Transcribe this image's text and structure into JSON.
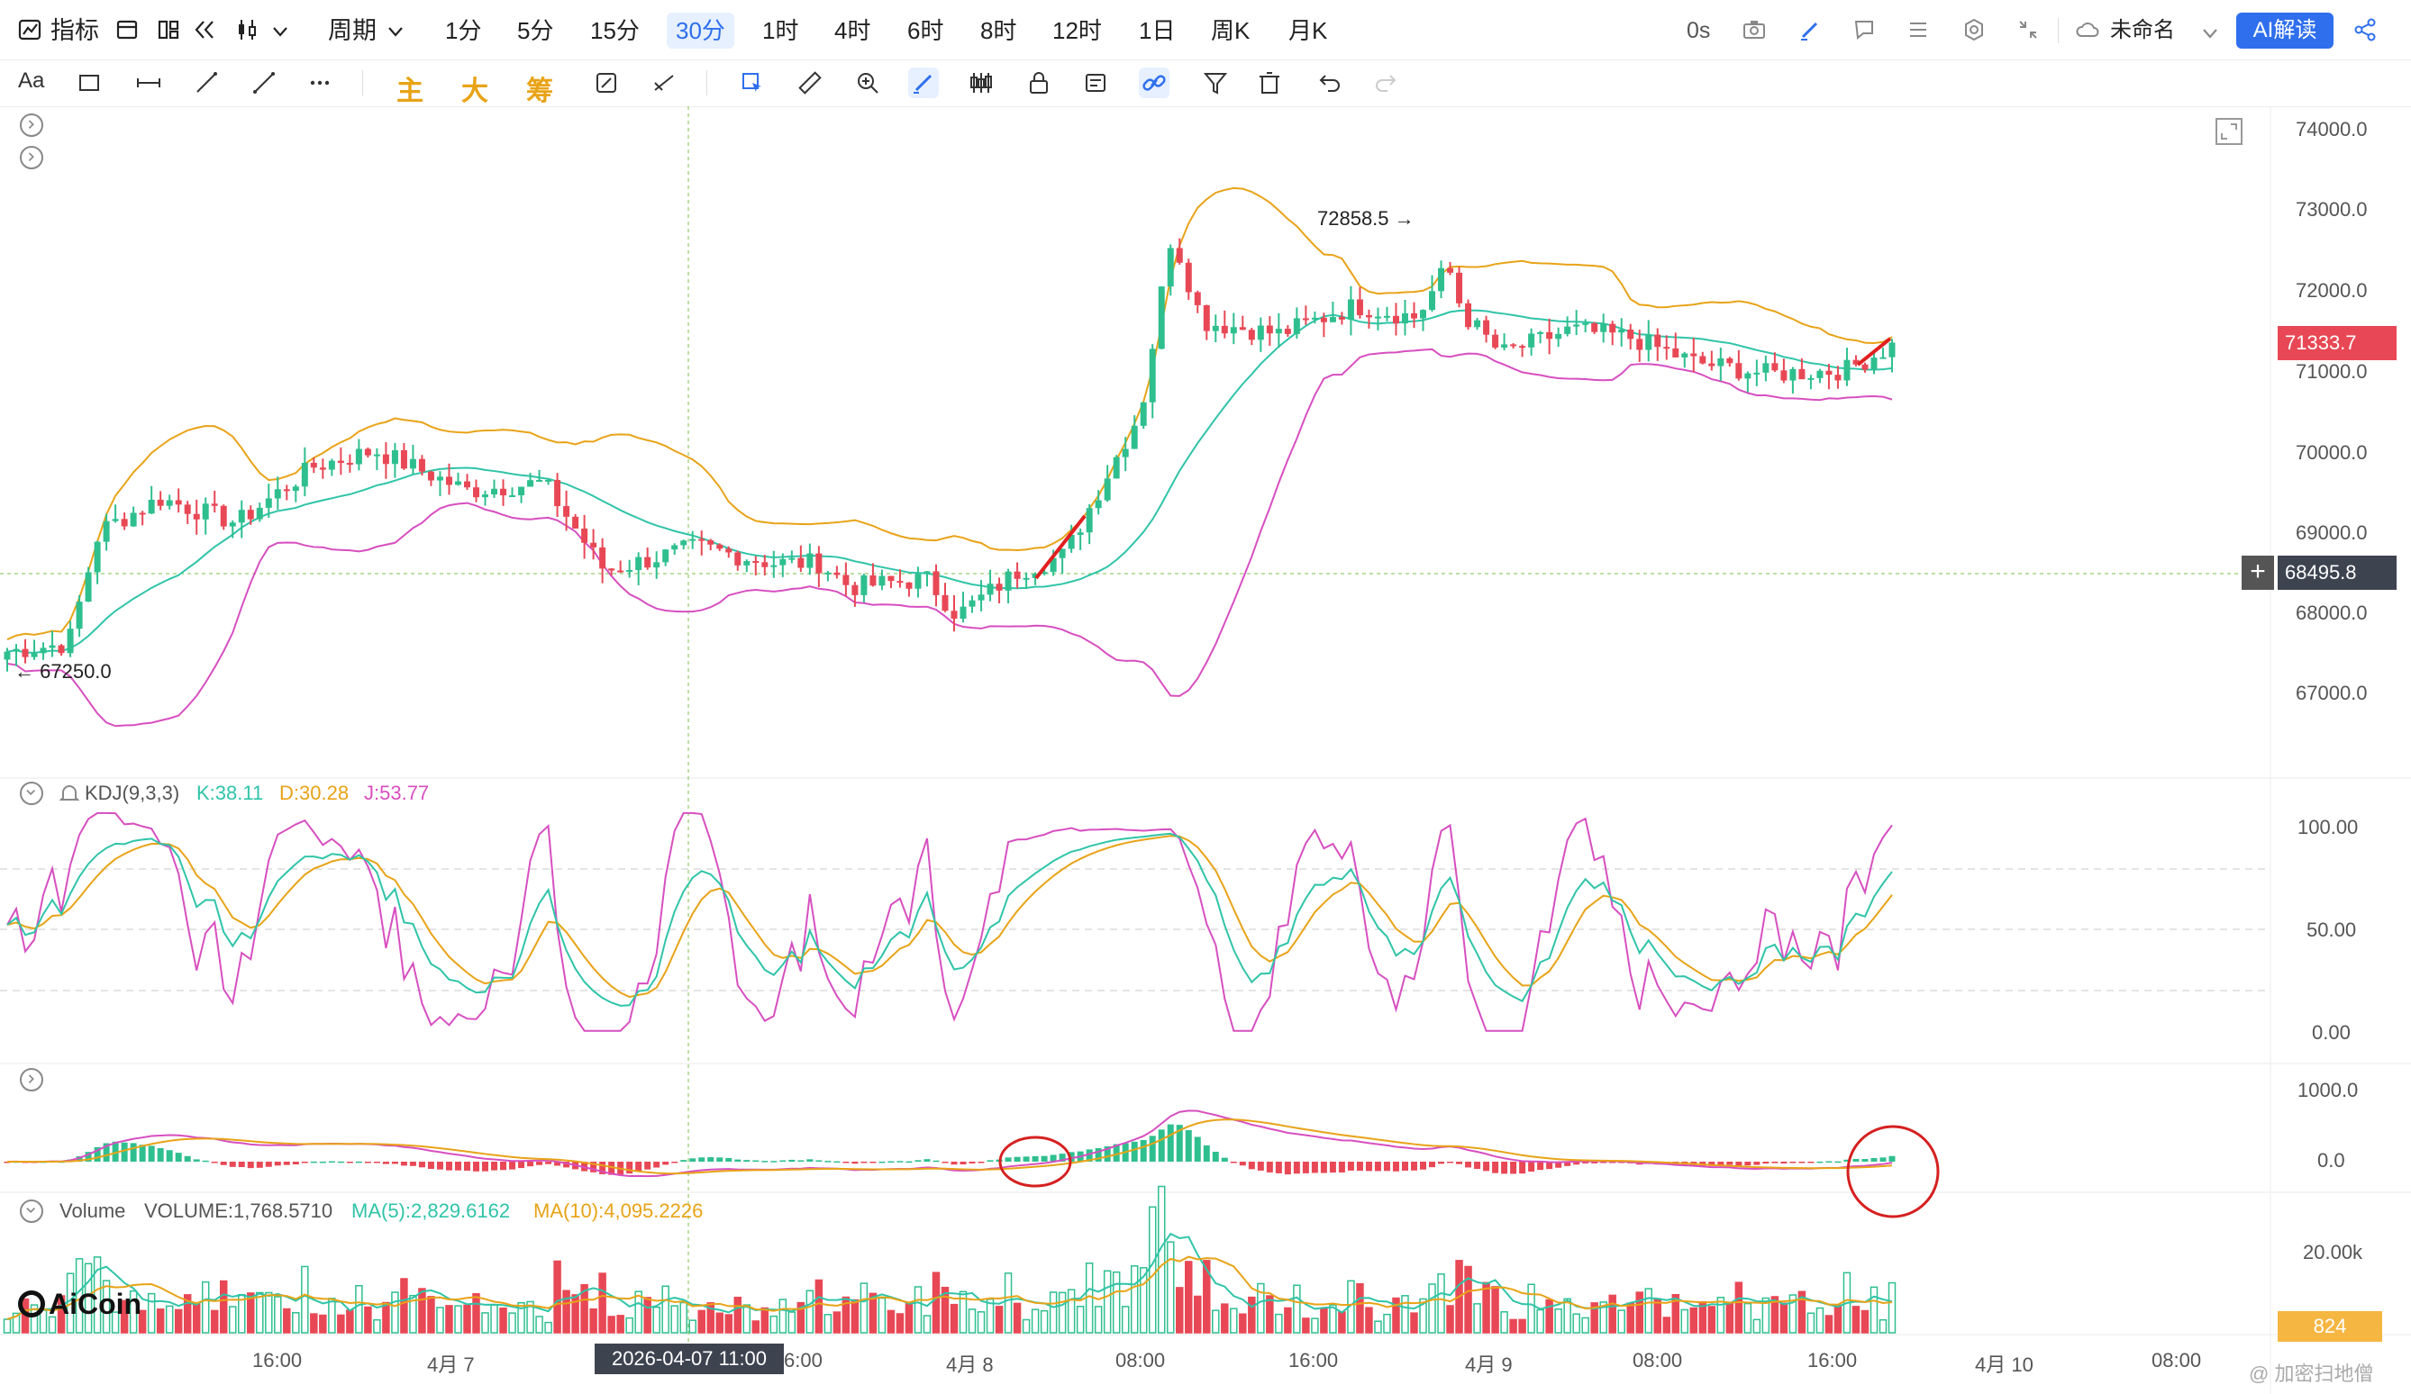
{
  "top_bar": {
    "indicator_label": "指标",
    "period_label": "周期",
    "periods": [
      "1分",
      "5分",
      "15分",
      "30分",
      "1时",
      "4时",
      "6时",
      "8时",
      "12时",
      "1日",
      "周K",
      "月K"
    ],
    "active_period": "30分",
    "countdown": "0s",
    "layout_name": "未命名",
    "ai_button": "AI解读"
  },
  "drawing_toolbar": {
    "text_tool": "Aa",
    "quick_labels": [
      "主",
      "大",
      "筹"
    ]
  },
  "main_chart": {
    "price_axis": [
      "74000.0",
      "73000.0",
      "72000.0",
      "71000.0",
      "70000.0",
      "69000.0",
      "68000.0",
      "67000.0"
    ],
    "current_price": "71333.7",
    "crosshair_price": "68495.8",
    "high_marker": "72858.5",
    "low_marker": "67250.0",
    "colors": {
      "up": "#2fbf8f",
      "down": "#e84855",
      "mid": "#2fc4a8",
      "upper": "#e8a317",
      "lower": "#d74fc0"
    }
  },
  "kdj": {
    "name": "KDJ(9,3,3)",
    "k": "K:38.11",
    "d": "D:30.28",
    "j": "J:53.77",
    "axis": [
      "100.00",
      "50.00",
      "0.00"
    ]
  },
  "macd": {
    "axis": [
      "1000.0",
      "0.0"
    ]
  },
  "volume": {
    "name": "Volume",
    "value": "VOLUME:1,768.5710",
    "ma5": "MA(5):2,829.6162",
    "ma10": "MA(10):4,095.2226",
    "axis": [
      "20.00k"
    ],
    "current_tag": "824"
  },
  "time_axis": {
    "labels": [
      "16:00",
      "4月 7",
      "6:00",
      "4月 8",
      "08:00",
      "16:00",
      "4月 9",
      "08:00",
      "16:00",
      "4月 10",
      "08:00"
    ],
    "crosshair_time": "2026-04-07 11:00"
  },
  "brand": "AiCoin",
  "watermark": "@ 加密扫地僧"
}
